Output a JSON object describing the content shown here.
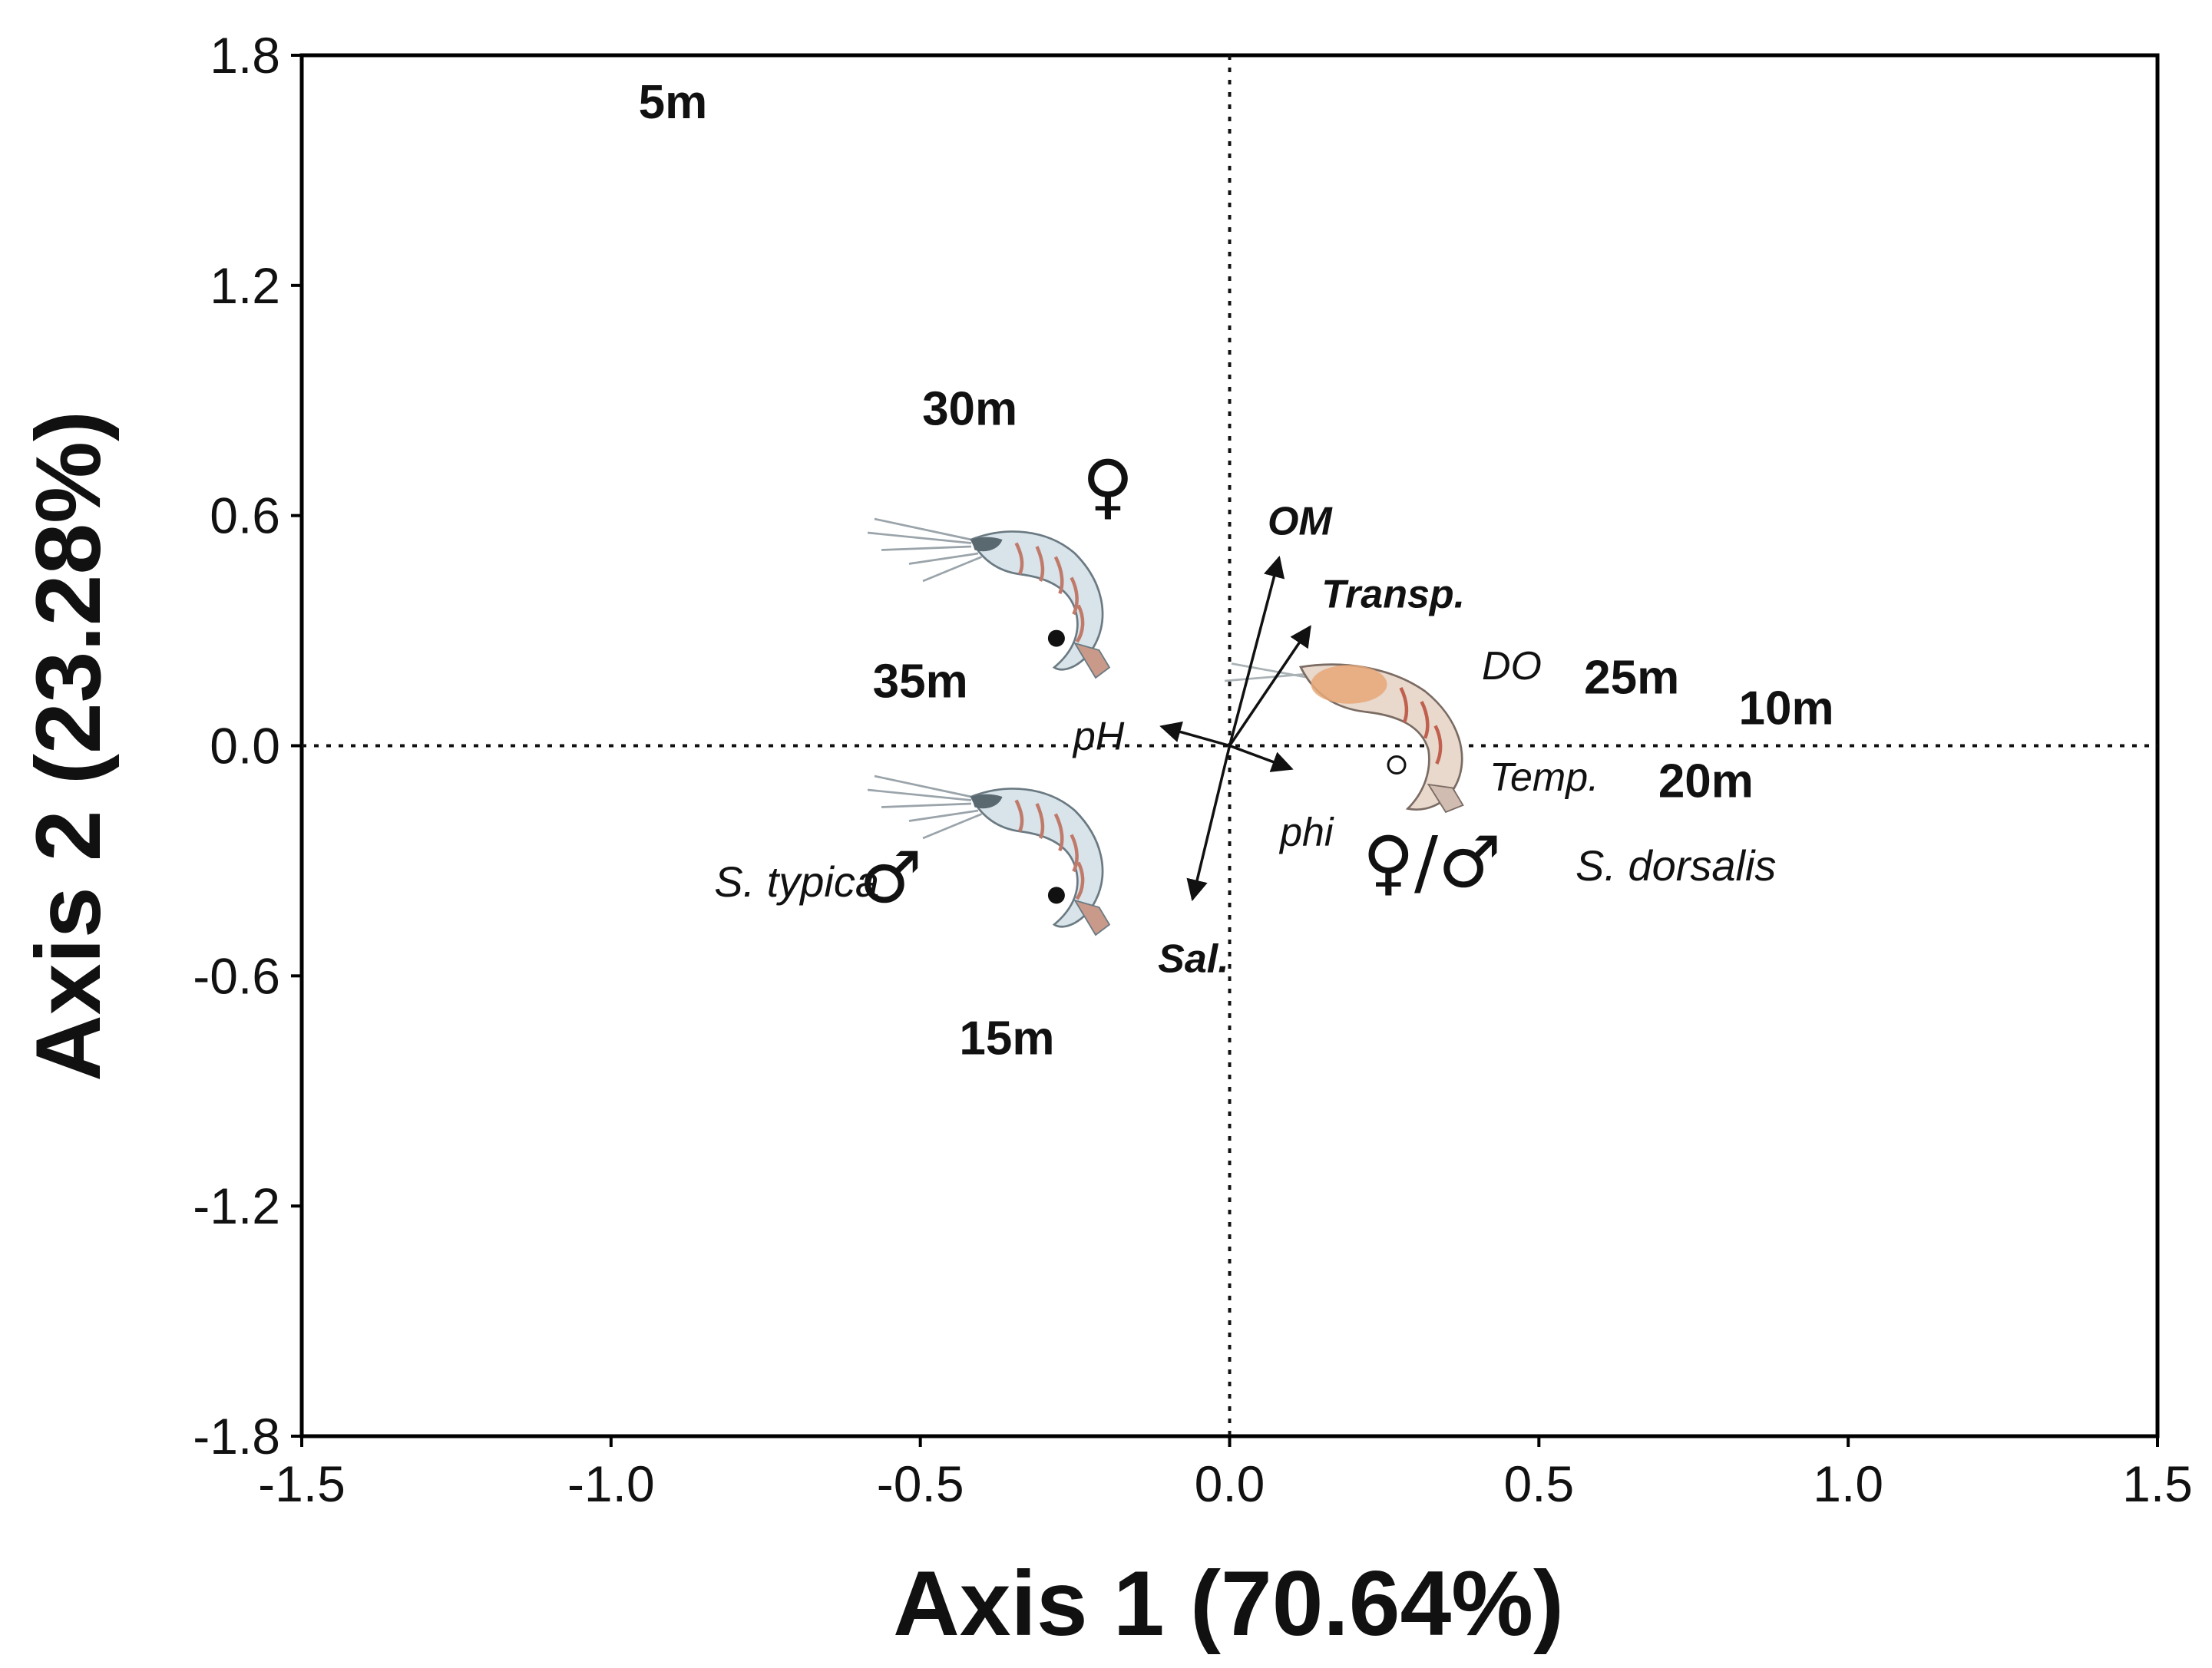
{
  "chart_data": {
    "type": "scatter",
    "title": "",
    "xlabel": "Axis 1 (70.64%)",
    "ylabel": "Axis 2 (23.28%)",
    "xlim": [
      -1.5,
      1.5
    ],
    "ylim": [
      -1.8,
      1.8
    ],
    "xticks": [
      "-1.5",
      "-1.0",
      "-0.5",
      "0.0",
      "0.5",
      "1.0",
      "1.5"
    ],
    "yticks": [
      "1.8",
      "1.2",
      "0.6",
      "0.0",
      "-0.6",
      "-1.2",
      "-1.8"
    ],
    "reference_lines": {
      "x": 0,
      "y": 0,
      "style": "dotted"
    },
    "depth_points": [
      {
        "label": "5m",
        "x": -0.9,
        "y": 1.68
      },
      {
        "label": "10m",
        "x": 0.9,
        "y": 0.1
      },
      {
        "label": "15m",
        "x": -0.36,
        "y": -0.76
      },
      {
        "label": "20m",
        "x": 0.77,
        "y": -0.09
      },
      {
        "label": "25m",
        "x": 0.65,
        "y": 0.18
      },
      {
        "label": "30m",
        "x": -0.42,
        "y": 0.88
      },
      {
        "label": "35m",
        "x": -0.5,
        "y": 0.17
      }
    ],
    "environmental_vectors": [
      {
        "label": "OM",
        "x": 0.08,
        "y": 0.49
      },
      {
        "label": "Transp.",
        "x": 0.13,
        "y": 0.31
      },
      {
        "label": "Sal.",
        "x": -0.06,
        "y": -0.4
      },
      {
        "label": "pH",
        "x": -0.11,
        "y": 0.05
      },
      {
        "label": "phi",
        "x": 0.1,
        "y": -0.06
      },
      {
        "label": "DO",
        "x": 0.0,
        "y": 0.0
      },
      {
        "label": "Temp.",
        "x": 0.0,
        "y": 0.0
      }
    ],
    "species_points": [
      {
        "species": "",
        "sex": "♀",
        "x": -0.28,
        "y": 0.28,
        "marker": "filled-circle"
      },
      {
        "species": "S. typica",
        "sex": "♂",
        "x": -0.28,
        "y": -0.39,
        "marker": "filled-circle"
      },
      {
        "species": "S. dorsalis",
        "sex": "♀/♂",
        "x": 0.27,
        "y": -0.05,
        "marker": "open-circle"
      }
    ],
    "colors": {
      "frame": "#000000",
      "points": "#111111",
      "text": "#111111"
    },
    "icons": [
      "shrimp-illustration"
    ]
  }
}
